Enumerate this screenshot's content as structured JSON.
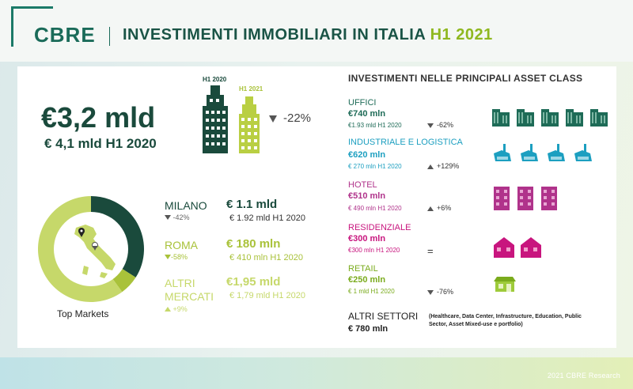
{
  "header": {
    "logo": "CBRE",
    "title_main": "INVESTIMENTI IMMOBILIARI IN ITALIA",
    "title_accent": "H1 2021"
  },
  "summary": {
    "total": "€3,2 mld",
    "previous": "€ 4,1 mld H1 2020",
    "label_2020": "H1 2020",
    "label_2021": "H1 2021",
    "change": "-22%"
  },
  "markets": {
    "caption": "Top Markets",
    "items": [
      {
        "city": "MILANO",
        "change": "-42%",
        "value": "€ 1.1 mld",
        "previous": "€ 1.92 mld H1 2020"
      },
      {
        "city": "ROMA",
        "change": "-58%",
        "value": "€ 180 mln",
        "previous": "€ 410 mln H1 2020"
      },
      {
        "city_line1": "ALTRI",
        "city_line2": "MERCATI",
        "change": "+9%",
        "value": "€1,95 mld",
        "previous": "€ 1,79 mld H1 2020"
      }
    ],
    "donut_shares": [
      0.34,
      0.06,
      0.6
    ]
  },
  "asset_classes": {
    "title": "INVESTIMENTI NELLE PRINCIPALI ASSET CLASS",
    "items": [
      {
        "name": "UFFICI",
        "value": "€740 mln",
        "previous": "€1.93 mld H1 2020",
        "change": "-62%",
        "color": "#1e6b57"
      },
      {
        "name": "INDUSTRIALE E LOGISTICA",
        "value": "€620 mln",
        "previous": "€ 270 mln H1 2020",
        "change": "+129%",
        "color": "#1c9fc0"
      },
      {
        "name": "HOTEL",
        "value": "€510 mln",
        "previous": "€ 490 mln H1 2020",
        "change": "+6%",
        "color": "#b0338b"
      },
      {
        "name": "RESIDENZIALE",
        "value": "€300 mln",
        "previous": "€300 mln H1 2020",
        "change": "=",
        "color": "#c8157e"
      },
      {
        "name": "RETAIL",
        "value": "€250 mln",
        "previous": "€ 1 mld H1 2020",
        "change": "-76%",
        "color": "#7aab1c"
      },
      {
        "name": "ALTRI SETTORI",
        "value": "€ 780 mln",
        "note": "(Healthcare, Data Center, Infrastructure, Education, Public Sector, Asset Mixed-use e portfolio)",
        "color": "#222222"
      }
    ]
  },
  "colors": {
    "dark_green": "#1a4a3c",
    "lime": "#a9c23a",
    "light_lime": "#c6d86a"
  },
  "footer": "2021 CBRE Research"
}
